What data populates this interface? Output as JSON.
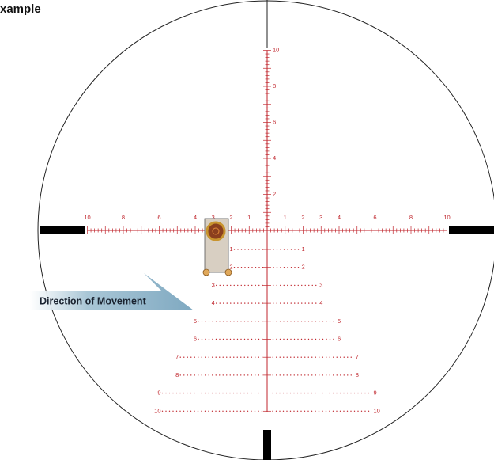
{
  "title": "xample",
  "annotation": "Direction of Movement",
  "reticle": {
    "horizontal_left": [
      "10",
      "8",
      "6",
      "4",
      "3",
      "2",
      "1"
    ],
    "horizontal_right": [
      "1",
      "2",
      "3",
      "4",
      "6",
      "8",
      "10"
    ],
    "vertical_up": [
      "2",
      "4",
      "6",
      "8",
      "10"
    ],
    "holdover_rows": [
      {
        "left": "1",
        "right": "1"
      },
      {
        "left": "2",
        "right": "2"
      },
      {
        "left": "3",
        "right": "3"
      },
      {
        "left": "4",
        "right": "4"
      },
      {
        "left": "5",
        "right": "5"
      },
      {
        "left": "6",
        "right": "6"
      },
      {
        "left": "7",
        "right": "7"
      },
      {
        "left": "8",
        "right": "8"
      },
      {
        "left": "9",
        "right": "9"
      },
      {
        "left": "10",
        "right": "10"
      }
    ]
  }
}
